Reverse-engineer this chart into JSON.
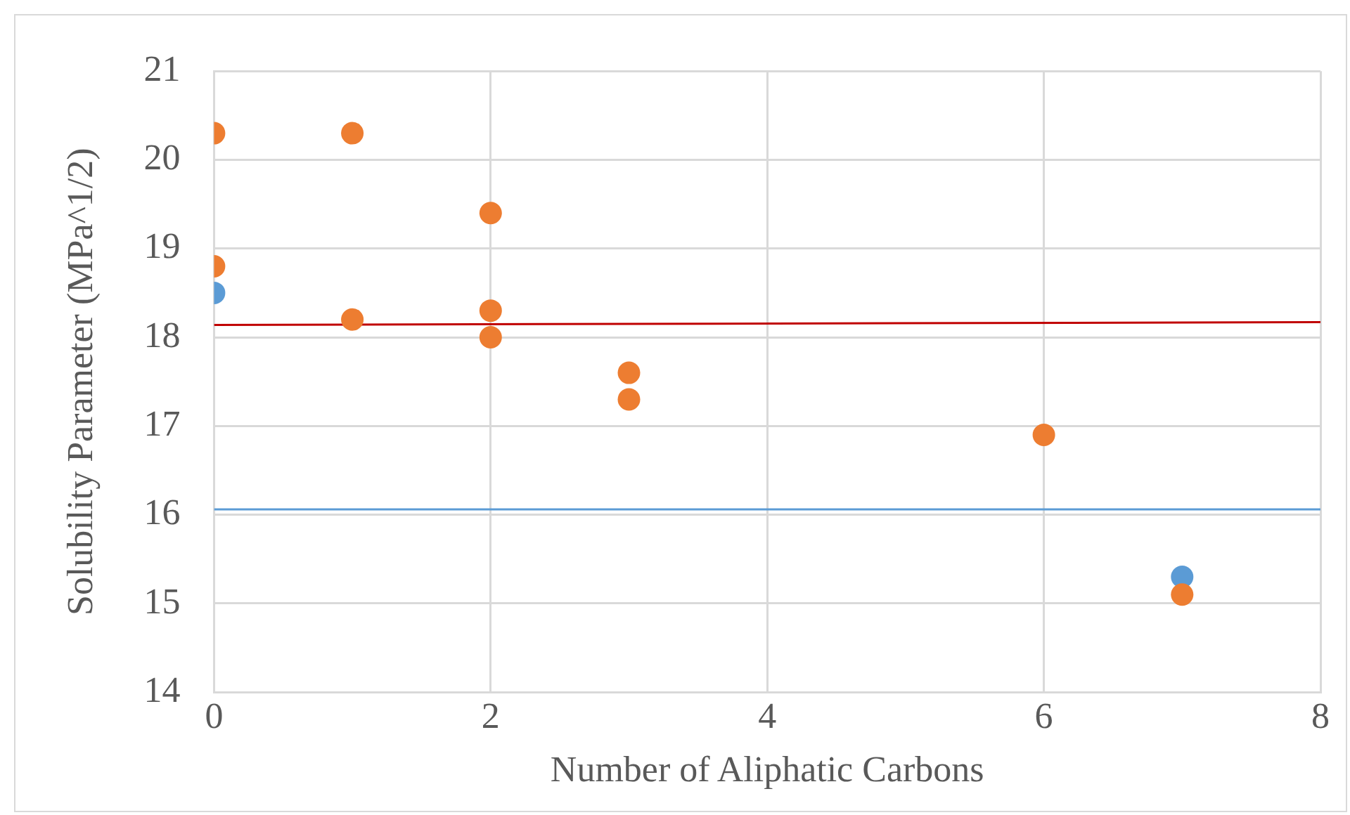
{
  "chart_data": {
    "type": "scatter",
    "xlabel": "Number of Aliphatic Carbons",
    "ylabel": "Solubility Parameter (MPa^1/2)",
    "xlim": [
      0,
      8
    ],
    "xticks": [
      0,
      2,
      4,
      6,
      8
    ],
    "ylim": [
      14,
      21
    ],
    "yticks": [
      14,
      15,
      16,
      17,
      18,
      19,
      20,
      21
    ],
    "grid": true,
    "legend": false,
    "marker": "circle",
    "series": [
      {
        "type": "line",
        "marker": "none",
        "color": "#c00000",
        "x": [
          0,
          8
        ],
        "values": [
          18.14,
          18.17
        ]
      },
      {
        "type": "line",
        "marker": "none",
        "color": "#5b9bd5",
        "x": [
          0,
          8
        ],
        "values": [
          16.06,
          16.06
        ]
      },
      {
        "type": "scatter",
        "color": "#5b9bd5",
        "x": [
          0,
          7
        ],
        "values": [
          18.5,
          15.3
        ]
      },
      {
        "type": "scatter",
        "color": "#ed7d31",
        "x": [
          0,
          0,
          1,
          1,
          2,
          2,
          2,
          3,
          3,
          6,
          7
        ],
        "values": [
          20.3,
          18.8,
          20.3,
          18.2,
          19.4,
          18.3,
          18.0,
          17.6,
          17.3,
          16.9,
          15.1
        ]
      }
    ]
  }
}
